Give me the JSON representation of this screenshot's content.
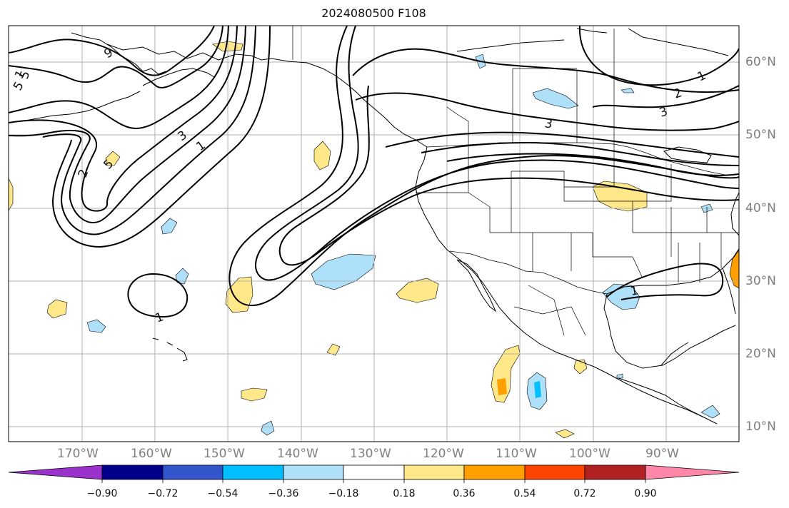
{
  "title": "2024080500 F108",
  "longitude_labels": [
    "170°W",
    "160°W",
    "150°W",
    "140°W",
    "130°W",
    "120°W",
    "110°W",
    "100°W",
    "90°W"
  ],
  "latitude_labels": [
    "60°N",
    "50°N",
    "40°N",
    "30°N",
    "20°N",
    "10°N"
  ],
  "contour_labels": [
    "1",
    "2",
    "3",
    "5",
    "3",
    "1",
    "1",
    "2",
    "3",
    "5",
    "1",
    "1",
    "9",
    "5"
  ],
  "colorbar": {
    "tick_labels": [
      "−0.90",
      "−0.72",
      "−0.54",
      "−0.36",
      "−0.18",
      "0.18",
      "0.36",
      "0.54",
      "0.72",
      "0.90"
    ],
    "colors": [
      "#9933cc",
      "#00008b",
      "#3355cc",
      "#00bfff",
      "#aee0fa",
      "#ffffff",
      "#ffe88a",
      "#ffa000",
      "#ff4400",
      "#b22222",
      "#ff88aa"
    ]
  },
  "field_colors": {
    "light_positive": "#ffe88a",
    "medium_positive": "#ffa000",
    "light_negative": "#aee0fa",
    "medium_negative": "#00bfff"
  }
}
